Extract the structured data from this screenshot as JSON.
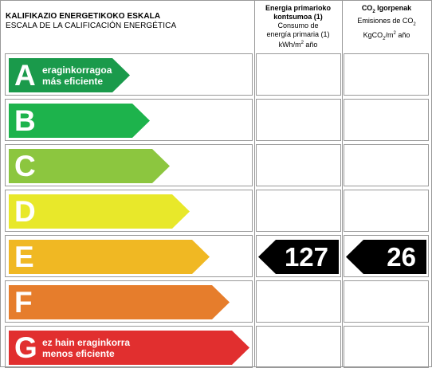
{
  "header": {
    "scale_title": "KALIFIKAZIO ENERGETIKOKO ESKALA",
    "scale_subtitle": "ESCALA DE LA CALIFICACIÓN ENERGÉTICA",
    "energy_title_l1": "Energia primarioko",
    "energy_title_l2": "kontsumoa (1)",
    "energy_sub_l1": "Consumo de",
    "energy_sub_l2": "energía primaria (1)",
    "energy_unit_pre": "kWh/m",
    "energy_unit_sup": "2",
    "energy_unit_post": " año",
    "co2_title_pre": "CO",
    "co2_title_sub": "2",
    "co2_title_post": " Igorpenak",
    "co2_sub_pre": "Emisiones de CO",
    "co2_sub_sub": "2",
    "co2_unit_pre": "KgCO",
    "co2_unit_sub": "2",
    "co2_unit_mid": "/m",
    "co2_unit_sup": "2",
    "co2_unit_post": " año"
  },
  "ratings": [
    {
      "letter": "A",
      "color": "#1a9a4b",
      "line1": "eraginkorragoa",
      "line2": "más eficiente"
    },
    {
      "letter": "B",
      "color": "#1db34c",
      "line1": "",
      "line2": ""
    },
    {
      "letter": "C",
      "color": "#8cc63f",
      "line1": "",
      "line2": ""
    },
    {
      "letter": "D",
      "color": "#e8e82a",
      "line1": "",
      "line2": ""
    },
    {
      "letter": "E",
      "color": "#f0b823",
      "line1": "",
      "line2": ""
    },
    {
      "letter": "F",
      "color": "#e67d2c",
      "line1": "",
      "line2": ""
    },
    {
      "letter": "G",
      "color": "#e12f2f",
      "line1": "ez hain eraginkorra",
      "line2": "menos eficiente"
    }
  ],
  "result": {
    "rating": "E",
    "energy_value": "127",
    "co2_value": "26"
  }
}
